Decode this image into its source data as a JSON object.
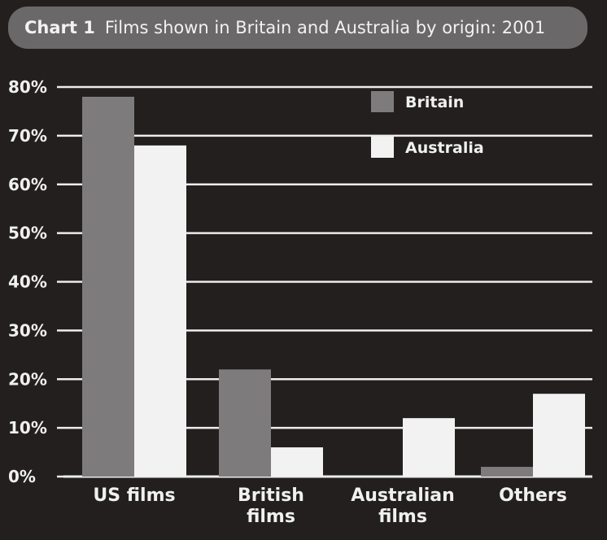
{
  "chart_data": {
    "type": "bar",
    "title_number": "Chart 1",
    "title": "Films shown in Britain and Australia by origin: 2001",
    "categories": [
      [
        "US films"
      ],
      [
        "British",
        "films"
      ],
      [
        "Australian",
        "films"
      ],
      [
        "Others"
      ]
    ],
    "series": [
      {
        "name": "Britain",
        "values": [
          78,
          22,
          0,
          2
        ],
        "color": "#7d7b7b"
      },
      {
        "name": "Australia",
        "values": [
          68,
          6,
          12,
          17
        ],
        "color": "#f2f2f2"
      }
    ],
    "ylim": [
      0,
      80
    ],
    "yticks": [
      "0%",
      "10%",
      "20%",
      "30%",
      "40%",
      "50%",
      "60%",
      "70%",
      "80%"
    ],
    "grid": true,
    "legend_position": "top-right",
    "colors": {
      "background": "#231f1f",
      "gridlines": "#ececec",
      "title_band": "#6a6868"
    }
  }
}
